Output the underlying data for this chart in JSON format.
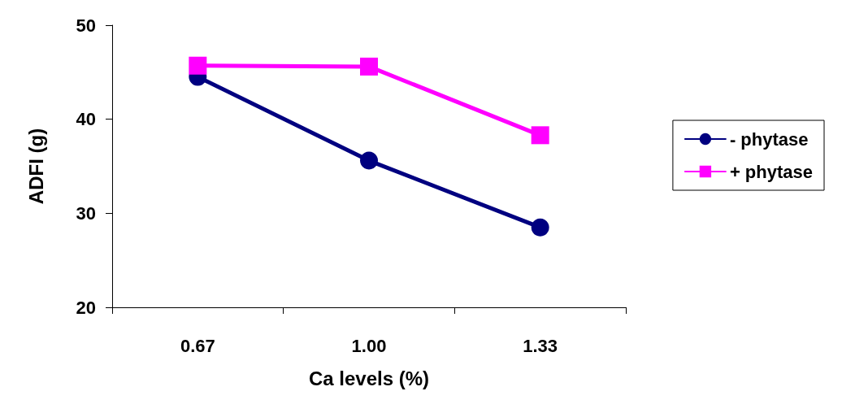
{
  "chart_data": {
    "type": "line",
    "xlabel": "Ca levels (%)",
    "ylabel": "ADFI (g)",
    "categories": [
      "0.67",
      "1.00",
      "1.33"
    ],
    "series": [
      {
        "name": "- phytase",
        "color": "#000080",
        "marker": "circle",
        "values": [
          44.5,
          35.6,
          28.5
        ]
      },
      {
        "name": "+ phytase",
        "color": "#ff00ff",
        "marker": "square",
        "values": [
          45.7,
          45.6,
          38.3
        ]
      }
    ],
    "ylim": [
      20,
      50
    ],
    "yticks": [
      20,
      30,
      40,
      50
    ],
    "grid": false,
    "legend": "right",
    "line_style": "solid"
  }
}
